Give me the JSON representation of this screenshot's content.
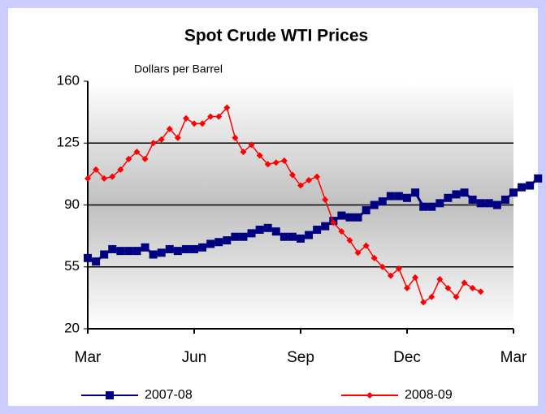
{
  "chart_data": {
    "type": "line",
    "title": "Spot Crude WTI Prices",
    "subtitle": "Dollars per Barrel",
    "xlim": [
      0,
      52
    ],
    "xticks": [
      {
        "value": 0,
        "label": "Mar"
      },
      {
        "value": 13,
        "label": "Jun"
      },
      {
        "value": 26,
        "label": "Sep"
      },
      {
        "value": 39,
        "label": "Dec"
      },
      {
        "value": 52,
        "label": "Mar"
      }
    ],
    "ylim": [
      20,
      160
    ],
    "yticks": [
      20,
      55,
      90,
      125,
      160
    ],
    "grid": true,
    "legend": "bottom",
    "series": [
      {
        "name": "2007-08",
        "color": "#000080",
        "marker": "square",
        "values": [
          60,
          58,
          62,
          65,
          64,
          64,
          64,
          66,
          62,
          63,
          65,
          64,
          65,
          65,
          66,
          68,
          69,
          70,
          72,
          72,
          74,
          76,
          77,
          75,
          72,
          72,
          71,
          73,
          76,
          78,
          81,
          84,
          83,
          83,
          87,
          90,
          92,
          95,
          95,
          94,
          97,
          89,
          89,
          91,
          94,
          96,
          97,
          93,
          91,
          91,
          90,
          93,
          97,
          100,
          101,
          105
        ]
      },
      {
        "name": "2008-09",
        "color": "#ff0000",
        "marker": "diamond",
        "values": [
          105,
          110,
          105,
          106,
          110,
          116,
          120,
          116,
          125,
          127,
          133,
          128,
          139,
          136,
          136,
          140,
          140,
          145,
          128,
          120,
          124,
          118,
          113,
          114,
          115,
          107,
          101,
          104,
          106,
          93,
          80,
          75,
          70,
          63,
          67,
          60,
          55,
          50,
          54,
          43,
          49,
          35,
          38,
          48,
          43,
          38,
          46,
          43,
          41
        ]
      }
    ]
  }
}
